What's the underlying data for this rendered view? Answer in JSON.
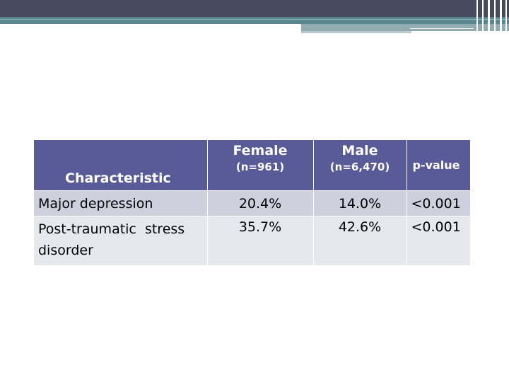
{
  "table": {
    "headers": {
      "characteristic": "Characteristic",
      "female": "Female",
      "female_n": "(n=961)",
      "male": "Male",
      "male_n": "(n=6,470)",
      "p_value": "p-value"
    },
    "rows": [
      {
        "label": "Major depression",
        "female": "20.4%",
        "male": "14.0%",
        "p": "<0.001"
      },
      {
        "label": "Post-traumatic  stress disorder",
        "female": "35.7%",
        "male": "42.6%",
        "p": "<0.001"
      }
    ]
  },
  "colors": {
    "header_bg": "#595a98",
    "row_odd_bg": "#cfd0dd",
    "row_even_bg": "#e7e8ee",
    "top_band": "#474a5e",
    "teal_band": "#59878f"
  }
}
